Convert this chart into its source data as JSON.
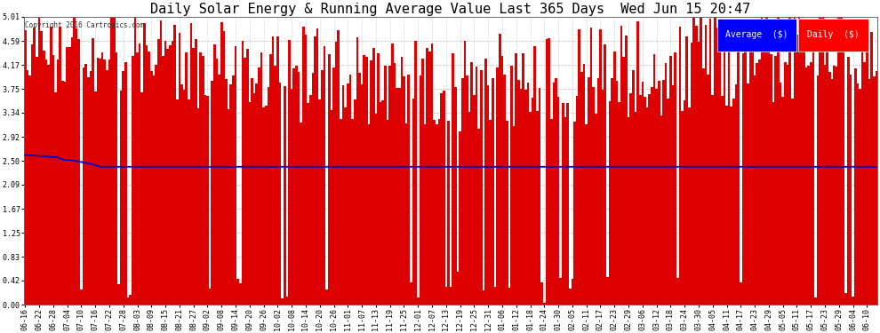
{
  "title": "Daily Solar Energy & Running Average Value Last 365 Days  Wed Jun 15 20:47",
  "copyright": "Copyright 2016 Cartronics.com",
  "legend_avg": "Average  ($)",
  "legend_daily": "Daily  ($)",
  "bar_color": "#dd0000",
  "avg_line_color": "#0000cc",
  "background_color": "#ffffff",
  "plot_bg_color": "#ffffff",
  "grid_color": "#aaaaaa",
  "yticks": [
    0.0,
    0.42,
    0.83,
    1.25,
    1.67,
    2.09,
    2.5,
    2.92,
    3.34,
    3.75,
    4.17,
    4.59,
    5.01
  ],
  "ylim": [
    0.0,
    5.01
  ],
  "title_fontsize": 11,
  "tick_fontsize": 6,
  "legend_fontsize": 7
}
